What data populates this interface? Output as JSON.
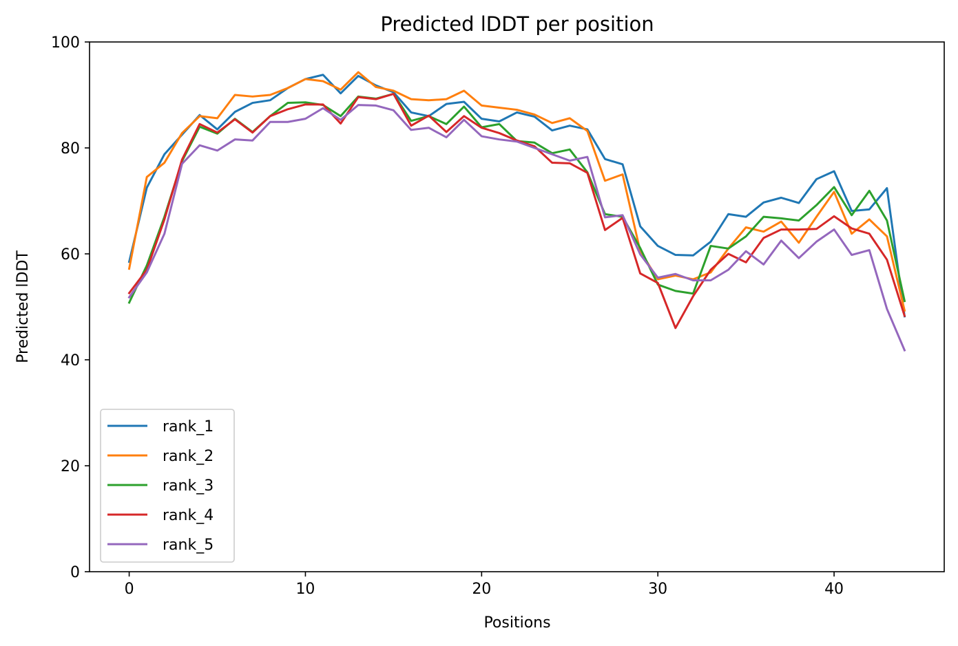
{
  "chart_data": {
    "type": "line",
    "title": "Predicted lDDT per position",
    "xlabel": "Positions",
    "ylabel": "Predicted lDDT",
    "xlim": [
      -2.25,
      46.25
    ],
    "ylim": [
      0,
      100
    ],
    "xticks": [
      0,
      10,
      20,
      30,
      40
    ],
    "yticks": [
      0,
      20,
      40,
      60,
      80,
      100
    ],
    "grid": false,
    "legend_position": "lower-left",
    "x": [
      0,
      1,
      2,
      3,
      4,
      5,
      6,
      7,
      8,
      9,
      10,
      11,
      12,
      13,
      14,
      15,
      16,
      17,
      18,
      19,
      20,
      21,
      22,
      23,
      24,
      25,
      26,
      27,
      28,
      29,
      30,
      31,
      32,
      33,
      34,
      35,
      36,
      37,
      38,
      39,
      40,
      41,
      42,
      43,
      44
    ],
    "series": [
      {
        "name": "rank_1",
        "color": "#1f77b4",
        "values": [
          58.5,
          72.5,
          78.8,
          82.5,
          86.2,
          83.5,
          86.8,
          88.5,
          89.0,
          91.3,
          93.0,
          93.8,
          90.3,
          93.6,
          91.8,
          90.5,
          86.7,
          86.0,
          88.3,
          88.7,
          85.5,
          85.0,
          86.7,
          85.9,
          83.3,
          84.2,
          83.5,
          77.9,
          76.9,
          65.2,
          61.5,
          59.8,
          59.7,
          62.3,
          67.5,
          67.0,
          69.7,
          70.6,
          69.6,
          74.1,
          75.6,
          68.1,
          68.4,
          72.4,
          48.2
        ]
      },
      {
        "name": "rank_2",
        "color": "#ff7f0e",
        "values": [
          57.2,
          74.5,
          77.2,
          82.8,
          86.0,
          85.6,
          90.0,
          89.7,
          90.0,
          91.3,
          93.0,
          92.6,
          91.0,
          94.3,
          91.5,
          90.8,
          89.2,
          89.0,
          89.2,
          90.8,
          88.0,
          87.6,
          87.2,
          86.3,
          84.7,
          85.6,
          83.2,
          73.8,
          75.0,
          60.5,
          55.2,
          55.9,
          55.2,
          56.5,
          61.0,
          65.0,
          64.2,
          66.1,
          62.1,
          67.0,
          71.7,
          63.8,
          66.5,
          63.3,
          49.3
        ]
      },
      {
        "name": "rank_3",
        "color": "#2ca02c",
        "values": [
          50.8,
          57.8,
          67.0,
          77.5,
          84.0,
          82.7,
          85.5,
          83.0,
          86.0,
          88.5,
          88.6,
          88.1,
          86.0,
          89.7,
          89.3,
          90.2,
          85.1,
          86.0,
          84.5,
          87.8,
          83.9,
          84.5,
          81.3,
          81.0,
          79.0,
          79.7,
          75.4,
          67.5,
          67.0,
          61.1,
          54.2,
          53.0,
          52.5,
          61.5,
          61.0,
          63.3,
          67.0,
          66.7,
          66.3,
          69.2,
          72.6,
          67.3,
          71.9,
          66.3,
          51.1
        ]
      },
      {
        "name": "rank_4",
        "color": "#d62728",
        "values": [
          52.6,
          57.0,
          66.5,
          77.8,
          84.5,
          82.9,
          85.4,
          82.9,
          86.0,
          87.3,
          88.2,
          88.2,
          84.6,
          89.6,
          89.2,
          90.2,
          84.2,
          86.1,
          83.0,
          86.0,
          83.8,
          82.8,
          81.4,
          80.3,
          77.2,
          77.1,
          75.3,
          64.5,
          66.8,
          56.3,
          54.5,
          46.0,
          52.0,
          57.0,
          60.0,
          58.4,
          63.0,
          64.6,
          64.6,
          64.7,
          67.1,
          64.8,
          63.8,
          58.9,
          48.3
        ]
      },
      {
        "name": "rank_5",
        "color": "#9467bd",
        "values": [
          51.8,
          56.5,
          63.8,
          77.0,
          80.5,
          79.5,
          81.6,
          81.4,
          84.9,
          84.9,
          85.5,
          87.5,
          85.3,
          88.1,
          88.0,
          87.1,
          83.4,
          83.8,
          82.0,
          85.3,
          82.2,
          81.6,
          81.2,
          80.0,
          78.8,
          77.6,
          78.3,
          66.9,
          67.3,
          59.9,
          55.5,
          56.2,
          55.0,
          55.0,
          57.0,
          60.5,
          58.0,
          62.5,
          59.2,
          62.3,
          64.6,
          59.8,
          60.7,
          49.6,
          41.8
        ]
      }
    ]
  }
}
